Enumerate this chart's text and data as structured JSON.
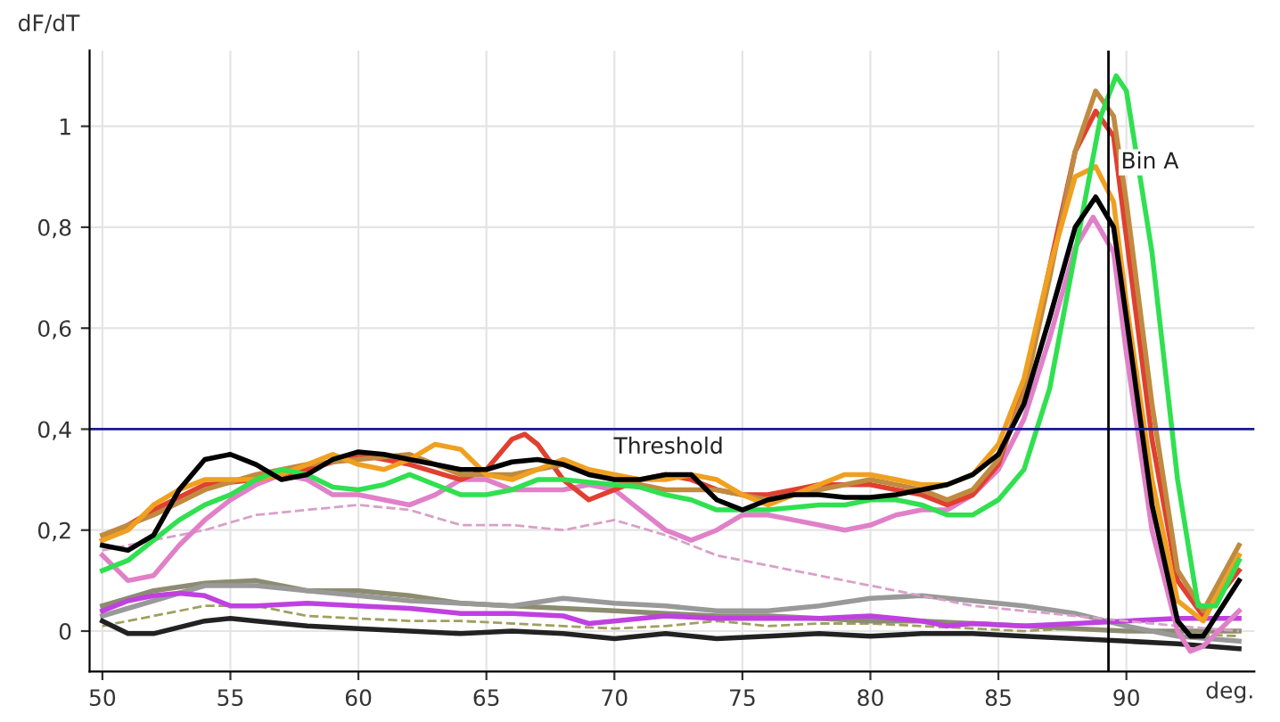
{
  "chart_data": {
    "type": "line",
    "xlabel": "deg.",
    "ylabel": "dF/dT",
    "xlim": [
      49.5,
      95
    ],
    "ylim": [
      -0.08,
      1.15
    ],
    "xticks": [
      50,
      55,
      60,
      65,
      70,
      75,
      80,
      85,
      90
    ],
    "yticks": [
      {
        "value": 0,
        "label": "0"
      },
      {
        "value": 0.2,
        "label": "0,2"
      },
      {
        "value": 0.4,
        "label": "0,4"
      },
      {
        "value": 0.6,
        "label": "0,6"
      },
      {
        "value": 0.8,
        "label": "0,8"
      },
      {
        "value": 1,
        "label": "1"
      }
    ],
    "grid": true,
    "marker": "none",
    "ref_lines": [
      {
        "axis": "y",
        "value": 0.4,
        "label": "Threshold",
        "color": "#1a1a8c"
      },
      {
        "axis": "x",
        "value": 89.3,
        "label": "Bin A",
        "color": "#000000"
      }
    ],
    "series": [
      {
        "color": "#a0a060",
        "line_style": "dashed",
        "x": [
          50,
          52,
          54,
          56,
          58,
          60,
          62,
          64,
          66,
          68,
          70,
          72,
          74,
          76,
          78,
          80,
          82,
          84,
          86,
          88,
          90,
          92,
          94.4
        ],
        "values": [
          0.01,
          0.03,
          0.05,
          0.05,
          0.03,
          0.025,
          0.02,
          0.02,
          0.015,
          0.01,
          0.005,
          0.01,
          0.02,
          0.01,
          0.015,
          0.015,
          0.01,
          0.005,
          0.0,
          0.005,
          0.0,
          -0.005,
          -0.01
        ]
      },
      {
        "color": "#8c8c70",
        "line_style": "solid",
        "x": [
          50,
          52,
          54,
          56,
          58,
          60,
          62,
          64,
          66,
          68,
          70,
          72,
          74,
          76,
          78,
          80,
          82,
          84,
          86,
          88,
          90,
          92,
          94.4
        ],
        "values": [
          0.05,
          0.08,
          0.095,
          0.1,
          0.08,
          0.08,
          0.07,
          0.055,
          0.05,
          0.045,
          0.04,
          0.035,
          0.03,
          0.03,
          0.025,
          0.02,
          0.02,
          0.015,
          0.01,
          0.005,
          0.0,
          0.0,
          0.0
        ]
      },
      {
        "color": "#999999",
        "line_style": "solid",
        "x": [
          50,
          52,
          54,
          56,
          58,
          60,
          62,
          64,
          66,
          68,
          70,
          72,
          74,
          76,
          78,
          80,
          82,
          84,
          86,
          88,
          90,
          92,
          94.4
        ],
        "values": [
          0.03,
          0.06,
          0.09,
          0.09,
          0.08,
          0.07,
          0.06,
          0.055,
          0.05,
          0.065,
          0.055,
          0.05,
          0.04,
          0.04,
          0.05,
          0.065,
          0.07,
          0.06,
          0.05,
          0.035,
          0.01,
          -0.01,
          -0.02
        ]
      },
      {
        "color": "#222222",
        "line_style": "solid",
        "x": [
          50,
          51,
          52,
          54,
          55,
          56,
          58,
          60,
          62,
          64,
          66,
          68,
          70,
          72,
          74,
          76,
          78,
          80,
          82,
          84,
          86,
          88,
          90,
          92,
          94.4
        ],
        "values": [
          0.02,
          -0.005,
          -0.005,
          0.02,
          0.025,
          0.02,
          0.01,
          0.005,
          0.0,
          -0.005,
          0.0,
          -0.005,
          -0.015,
          -0.005,
          -0.015,
          -0.01,
          -0.005,
          -0.01,
          -0.005,
          -0.005,
          -0.01,
          -0.015,
          -0.02,
          -0.025,
          -0.035
        ]
      },
      {
        "color": "#c040e0",
        "line_style": "solid",
        "x": [
          50,
          51,
          52,
          53,
          54,
          55,
          56,
          58,
          60,
          62,
          64,
          66,
          68,
          69,
          70,
          72,
          74,
          76,
          78,
          80,
          82,
          83,
          84,
          86,
          88,
          90,
          92,
          94.4
        ],
        "values": [
          0.04,
          0.06,
          0.07,
          0.075,
          0.07,
          0.05,
          0.05,
          0.055,
          0.05,
          0.045,
          0.035,
          0.035,
          0.03,
          0.015,
          0.02,
          0.03,
          0.025,
          0.025,
          0.025,
          0.03,
          0.02,
          0.01,
          0.015,
          0.01,
          0.015,
          0.02,
          0.025,
          0.025
        ]
      },
      {
        "color": "#d8a0c8",
        "line_style": "dashed",
        "x": [
          50,
          52,
          54,
          56,
          58,
          60,
          62,
          64,
          66,
          68,
          70,
          72,
          74,
          76,
          78,
          80,
          82,
          84,
          86,
          88,
          90,
          92,
          94.4
        ],
        "values": [
          0.16,
          0.18,
          0.2,
          0.23,
          0.24,
          0.25,
          0.24,
          0.21,
          0.21,
          0.2,
          0.22,
          0.19,
          0.15,
          0.13,
          0.11,
          0.09,
          0.07,
          0.05,
          0.04,
          0.03,
          0.02,
          0.01,
          0.0
        ]
      },
      {
        "color": "#e080c8",
        "line_style": "solid",
        "x": [
          50,
          51,
          52,
          53,
          54,
          55,
          56,
          57,
          58,
          59,
          60,
          61,
          62,
          63,
          64,
          65,
          66,
          67,
          68,
          69,
          70,
          71,
          72,
          73,
          74,
          75,
          76,
          77,
          78,
          79,
          80,
          81,
          82,
          83,
          84,
          85,
          86,
          87,
          88,
          88.7,
          89.5,
          90,
          91,
          92,
          92.5,
          93,
          94.4
        ],
        "values": [
          0.15,
          0.1,
          0.11,
          0.17,
          0.22,
          0.26,
          0.29,
          0.31,
          0.3,
          0.27,
          0.27,
          0.26,
          0.25,
          0.27,
          0.3,
          0.3,
          0.28,
          0.28,
          0.28,
          0.29,
          0.28,
          0.24,
          0.2,
          0.18,
          0.2,
          0.23,
          0.23,
          0.22,
          0.21,
          0.2,
          0.21,
          0.23,
          0.24,
          0.24,
          0.27,
          0.32,
          0.42,
          0.58,
          0.76,
          0.82,
          0.75,
          0.55,
          0.2,
          0.0,
          -0.04,
          -0.03,
          0.04
        ]
      },
      {
        "color": "#e04030",
        "line_style": "solid",
        "x": [
          50,
          52,
          54,
          56,
          58,
          60,
          62,
          64,
          65,
          66,
          66.5,
          67,
          68,
          69,
          70,
          71,
          72,
          73,
          74,
          75,
          76,
          77,
          78,
          79,
          80,
          81,
          82,
          83,
          84,
          85,
          86,
          87,
          88,
          88.8,
          89.5,
          90,
          91,
          92,
          93,
          94.4
        ],
        "values": [
          0.18,
          0.24,
          0.29,
          0.3,
          0.32,
          0.35,
          0.33,
          0.3,
          0.32,
          0.38,
          0.39,
          0.37,
          0.3,
          0.26,
          0.28,
          0.3,
          0.31,
          0.3,
          0.28,
          0.27,
          0.27,
          0.28,
          0.29,
          0.29,
          0.29,
          0.28,
          0.27,
          0.25,
          0.27,
          0.33,
          0.48,
          0.72,
          0.95,
          1.03,
          0.98,
          0.78,
          0.38,
          0.1,
          0.03,
          0.12
        ]
      },
      {
        "color": "#c08a40",
        "line_style": "solid",
        "x": [
          50,
          52,
          54,
          56,
          58,
          60,
          62,
          64,
          66,
          68,
          70,
          72,
          74,
          76,
          78,
          80,
          82,
          83,
          84,
          85,
          86,
          87,
          88,
          88.8,
          89.5,
          90,
          91,
          92,
          93,
          94.4
        ],
        "values": [
          0.19,
          0.23,
          0.28,
          0.31,
          0.33,
          0.34,
          0.35,
          0.31,
          0.31,
          0.33,
          0.3,
          0.28,
          0.28,
          0.26,
          0.28,
          0.3,
          0.28,
          0.26,
          0.28,
          0.34,
          0.47,
          0.7,
          0.95,
          1.07,
          1.02,
          0.85,
          0.45,
          0.12,
          0.04,
          0.17
        ]
      },
      {
        "color": "#f0a020",
        "line_style": "solid",
        "x": [
          50,
          51,
          52,
          53,
          54,
          55,
          56,
          57,
          58,
          59,
          60,
          61,
          62,
          63,
          64,
          65,
          66,
          67,
          68,
          69,
          70,
          71,
          72,
          73,
          74,
          75,
          76,
          77,
          78,
          79,
          80,
          81,
          82,
          83,
          84,
          85,
          86,
          87,
          88,
          88.8,
          89.5,
          90,
          91,
          92,
          93,
          94.4
        ],
        "values": [
          0.18,
          0.2,
          0.25,
          0.28,
          0.3,
          0.3,
          0.3,
          0.31,
          0.33,
          0.35,
          0.33,
          0.32,
          0.34,
          0.37,
          0.36,
          0.31,
          0.3,
          0.32,
          0.34,
          0.32,
          0.31,
          0.3,
          0.3,
          0.31,
          0.3,
          0.27,
          0.25,
          0.27,
          0.29,
          0.31,
          0.31,
          0.3,
          0.29,
          0.29,
          0.31,
          0.37,
          0.5,
          0.72,
          0.9,
          0.92,
          0.85,
          0.65,
          0.3,
          0.06,
          0.02,
          0.15
        ]
      },
      {
        "color": "#30e050",
        "line_style": "solid",
        "x": [
          50,
          51,
          52,
          53,
          54,
          55,
          56,
          57,
          58,
          59,
          60,
          61,
          62,
          63,
          64,
          65,
          66,
          67,
          68,
          69,
          70,
          71,
          72,
          73,
          74,
          75,
          76,
          77,
          78,
          79,
          80,
          81,
          82,
          83,
          84,
          85,
          86,
          87,
          88,
          89,
          89.6,
          90,
          91,
          92,
          92.8,
          93.5,
          94.4
        ],
        "values": [
          0.12,
          0.14,
          0.18,
          0.22,
          0.25,
          0.27,
          0.3,
          0.32,
          0.31,
          0.285,
          0.28,
          0.29,
          0.31,
          0.29,
          0.27,
          0.27,
          0.28,
          0.3,
          0.3,
          0.295,
          0.29,
          0.285,
          0.27,
          0.26,
          0.24,
          0.24,
          0.24,
          0.245,
          0.25,
          0.25,
          0.26,
          0.26,
          0.25,
          0.23,
          0.23,
          0.26,
          0.32,
          0.48,
          0.75,
          1.02,
          1.1,
          1.07,
          0.75,
          0.3,
          0.05,
          0.05,
          0.14
        ]
      },
      {
        "color": "#000000",
        "line_style": "solid",
        "x": [
          50,
          51,
          52,
          53,
          54,
          55,
          56,
          57,
          58,
          59,
          60,
          61,
          62,
          63,
          64,
          65,
          66,
          67,
          68,
          69,
          70,
          71,
          72,
          73,
          74,
          75,
          76,
          77,
          78,
          79,
          80,
          81,
          82,
          83,
          84,
          85,
          86,
          87,
          88,
          88.8,
          89.5,
          90,
          91,
          92,
          92.5,
          93,
          94.4
        ],
        "values": [
          0.17,
          0.16,
          0.19,
          0.28,
          0.34,
          0.35,
          0.33,
          0.3,
          0.31,
          0.34,
          0.355,
          0.35,
          0.34,
          0.33,
          0.32,
          0.32,
          0.335,
          0.34,
          0.33,
          0.31,
          0.3,
          0.3,
          0.31,
          0.31,
          0.26,
          0.24,
          0.26,
          0.27,
          0.27,
          0.265,
          0.265,
          0.27,
          0.28,
          0.29,
          0.31,
          0.35,
          0.45,
          0.62,
          0.8,
          0.86,
          0.8,
          0.62,
          0.25,
          0.02,
          -0.01,
          -0.01,
          0.1
        ]
      }
    ]
  }
}
